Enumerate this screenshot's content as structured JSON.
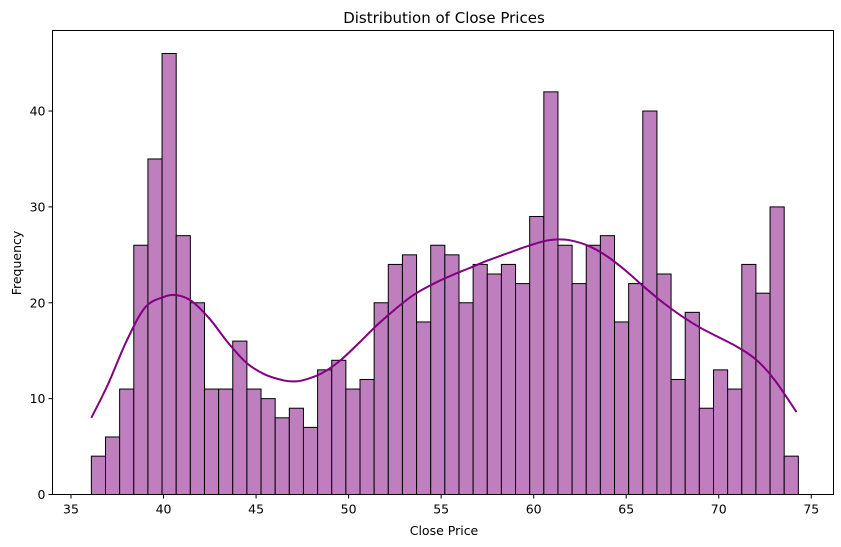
{
  "chart_data": {
    "type": "bar",
    "subtype": "histogram-with-kde",
    "title": "Distribution of Close Prices",
    "xlabel": "Close Price",
    "ylabel": "Frequency",
    "xlim": [
      34,
      76.2
    ],
    "ylim": [
      0,
      48.4
    ],
    "xticks": [
      35,
      40,
      45,
      50,
      55,
      60,
      65,
      70,
      75
    ],
    "yticks": [
      0,
      10,
      20,
      30,
      40
    ],
    "grid": false,
    "legend": null,
    "colors": {
      "bar_fill": "#bf7fbf",
      "bar_edge": "#000000",
      "kde_line": "#800080"
    },
    "bins": {
      "start": 36.1,
      "width": 0.764,
      "counts": [
        4,
        6,
        11,
        26,
        35,
        46,
        27,
        20,
        11,
        11,
        16,
        11,
        10,
        8,
        9,
        7,
        13,
        14,
        11,
        12,
        20,
        24,
        25,
        18,
        26,
        25,
        20,
        24,
        23,
        24,
        22,
        29,
        42,
        26,
        22,
        26,
        27,
        18,
        22,
        40,
        23,
        12,
        19,
        9,
        13,
        11,
        24,
        21,
        30,
        4
      ]
    },
    "kde": {
      "x": [
        36.1,
        37.0,
        38.0,
        39.0,
        40.0,
        40.7,
        41.5,
        42.5,
        43.5,
        44.5,
        45.5,
        46.5,
        47.0,
        47.5,
        48.5,
        49.5,
        50.5,
        51.5,
        52.5,
        53.5,
        54.5,
        55.5,
        56.5,
        57.5,
        58.5,
        59.5,
        60.5,
        61.2,
        62.0,
        63.0,
        64.0,
        65.0,
        66.0,
        67.0,
        68.0,
        69.0,
        70.0,
        71.0,
        72.0,
        73.0,
        74.2
      ],
      "y": [
        8.0,
        11.5,
        16.0,
        19.5,
        20.6,
        20.8,
        20.2,
        18.3,
        15.8,
        13.7,
        12.5,
        11.9,
        11.8,
        11.9,
        12.6,
        13.9,
        15.7,
        17.6,
        19.3,
        20.8,
        21.9,
        22.8,
        23.6,
        24.4,
        25.1,
        25.8,
        26.4,
        26.6,
        26.5,
        25.9,
        24.8,
        23.3,
        21.6,
        20.0,
        18.6,
        17.4,
        16.4,
        15.4,
        14.1,
        12.0,
        8.6
      ]
    }
  }
}
